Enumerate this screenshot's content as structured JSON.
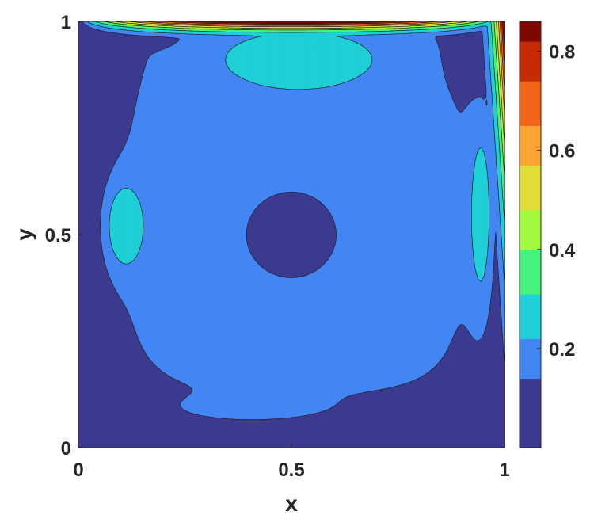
{
  "chart_data": {
    "type": "contour",
    "title": "",
    "xlabel": "x",
    "ylabel": "y",
    "xlim": [
      0,
      1
    ],
    "ylim": [
      0,
      1
    ],
    "x_ticks": [
      {
        "value": 0,
        "label": "0"
      },
      {
        "value": 0.5,
        "label": "0.5"
      },
      {
        "value": 1,
        "label": "1"
      }
    ],
    "y_ticks": [
      {
        "value": 0,
        "label": "0"
      },
      {
        "value": 0.5,
        "label": "0.5"
      },
      {
        "value": 1,
        "label": "1"
      }
    ],
    "colorbar": {
      "range": [
        0,
        0.86
      ],
      "ticks": [
        {
          "value": 0.2,
          "label": "0.2"
        },
        {
          "value": 0.4,
          "label": "0.4"
        },
        {
          "value": 0.6,
          "label": "0.6"
        },
        {
          "value": 0.8,
          "label": "0.8"
        }
      ],
      "colormap": "turbo"
    },
    "levels": [
      0.07,
      0.14,
      0.22,
      0.31,
      0.4,
      0.48,
      0.57,
      0.65,
      0.74,
      0.82
    ],
    "level_colors": [
      "#3c3991",
      "#4286f4",
      "#1ecfd6",
      "#45f27c",
      "#a1fb3c",
      "#e1dd37",
      "#fea331",
      "#f2641a",
      "#c82b04",
      "#7c0a02"
    ],
    "field": {
      "kind": "lid-driven cavity velocity magnitude",
      "vortex_center": [
        0.5,
        0.5
      ],
      "lid_speed": 1
    }
  }
}
